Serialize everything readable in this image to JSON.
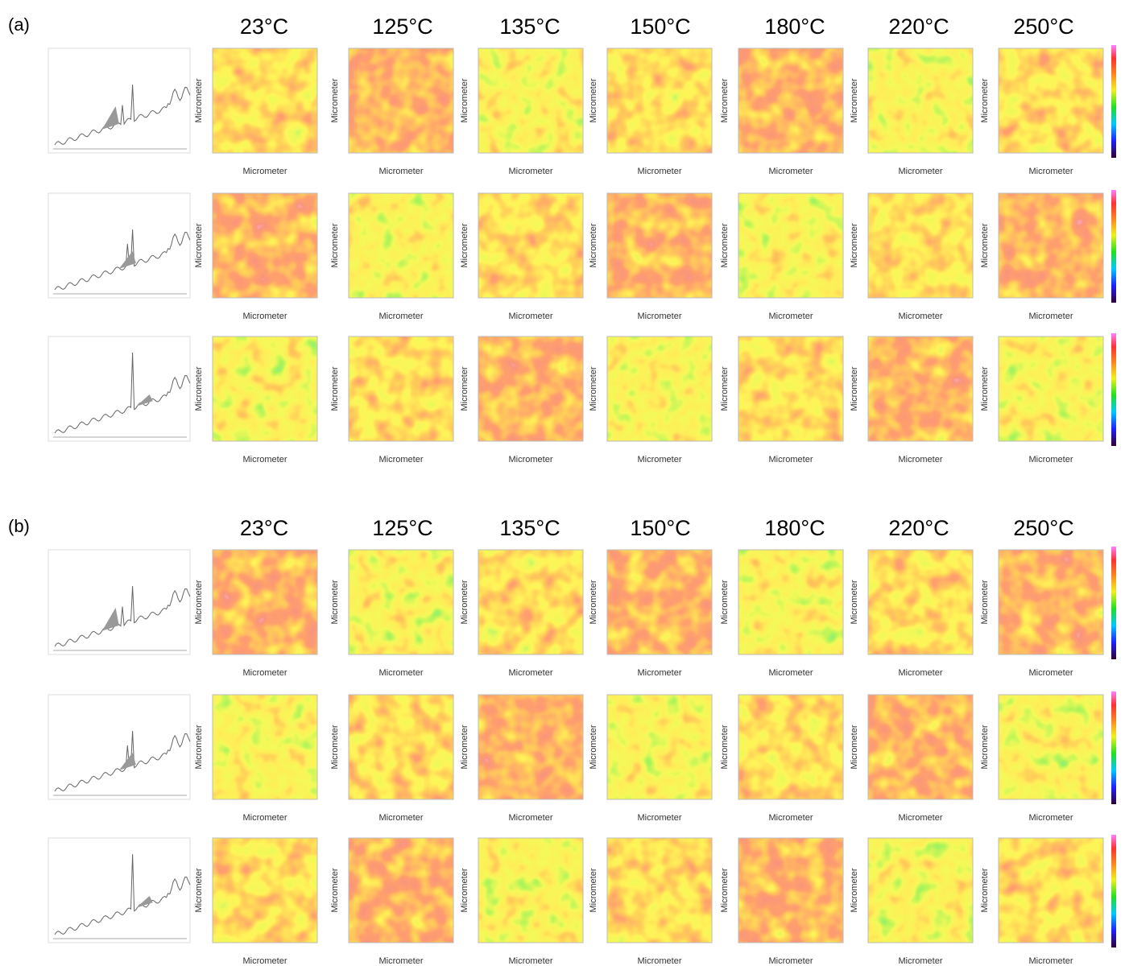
{
  "panels": [
    {
      "label": "(a)",
      "temperatures": [
        "23°C",
        "125°C",
        "135°C",
        "150°C",
        "180°C",
        "220°C",
        "250°C"
      ],
      "x_axis_label": "Micrometer",
      "y_axis_label": "Micrometer"
    },
    {
      "label": "(b)",
      "temperatures": [
        "23°C",
        "125°C",
        "135°C",
        "150°C",
        "180°C",
        "220°C",
        "250°C"
      ],
      "x_axis_label": "Micrometer",
      "y_axis_label": "Micrometer"
    }
  ]
}
